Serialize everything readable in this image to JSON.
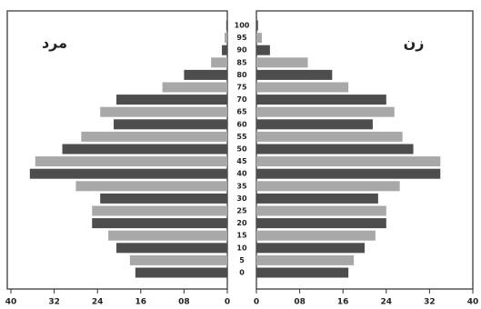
{
  "chart_data": {
    "type": "population_pyramid",
    "categories": [
      "0",
      "5",
      "10",
      "15",
      "20",
      "25",
      "30",
      "35",
      "40",
      "45",
      "50",
      "55",
      "60",
      "65",
      "70",
      "75",
      "80",
      "85",
      "90",
      "95",
      "100"
    ],
    "series": [
      {
        "name": "مرد",
        "side": "left",
        "colors": [
          "#4d4d4d",
          "#a8a8a8"
        ],
        "values": [
          17,
          18,
          20.5,
          22,
          25,
          25,
          23.5,
          28,
          36.5,
          35.5,
          30.5,
          27,
          21,
          23.5,
          20.5,
          12,
          8,
          3,
          1,
          0.5,
          0.2
        ]
      },
      {
        "name": "زن",
        "side": "right",
        "colors": [
          "#4d4d4d",
          "#a8a8a8"
        ],
        "values": [
          17,
          18,
          20,
          22,
          24,
          24,
          22.5,
          26.5,
          34,
          34,
          29,
          27,
          21.5,
          25.5,
          24,
          17,
          14,
          9.5,
          2.5,
          1,
          0.3
        ]
      }
    ],
    "xlim": [
      0,
      40
    ],
    "xticks": [
      0,
      {
        "value": 8,
        "label": "08"
      },
      16,
      24,
      32,
      40
    ]
  }
}
